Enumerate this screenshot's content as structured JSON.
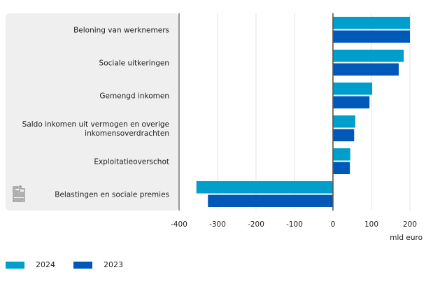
{
  "chart_data": {
    "type": "bar",
    "orientation": "horizontal",
    "title": "",
    "xlabel": "mld euro",
    "ylabel": "",
    "xlim": [
      -400,
      220
    ],
    "xticks": [
      -400,
      -300,
      -200,
      -100,
      0,
      100,
      200
    ],
    "xtick_labels": [
      "-400",
      "-300",
      "-200",
      "-100",
      "0",
      "100",
      "200"
    ],
    "grid": true,
    "legend_position": "bottom-left",
    "categories": [
      [
        "Beloning van werknemers"
      ],
      [
        "Sociale uitkeringen"
      ],
      [
        "Gemengd inkomen"
      ],
      [
        "Saldo inkomen uit vermogen en overige",
        "inkomensoverdrachten"
      ],
      [
        "Exploitatieoverschot"
      ],
      [
        "Belastingen en sociale premies"
      ]
    ],
    "series": [
      {
        "name": "2024",
        "color": "#009fcb",
        "values": [
          200,
          184,
          102,
          58,
          45,
          -355
        ]
      },
      {
        "name": "2023",
        "color": "#0058b8",
        "values": [
          200,
          171,
          95,
          55,
          44,
          -325
        ]
      }
    ]
  },
  "logo": {
    "name": "cbs-logo"
  }
}
